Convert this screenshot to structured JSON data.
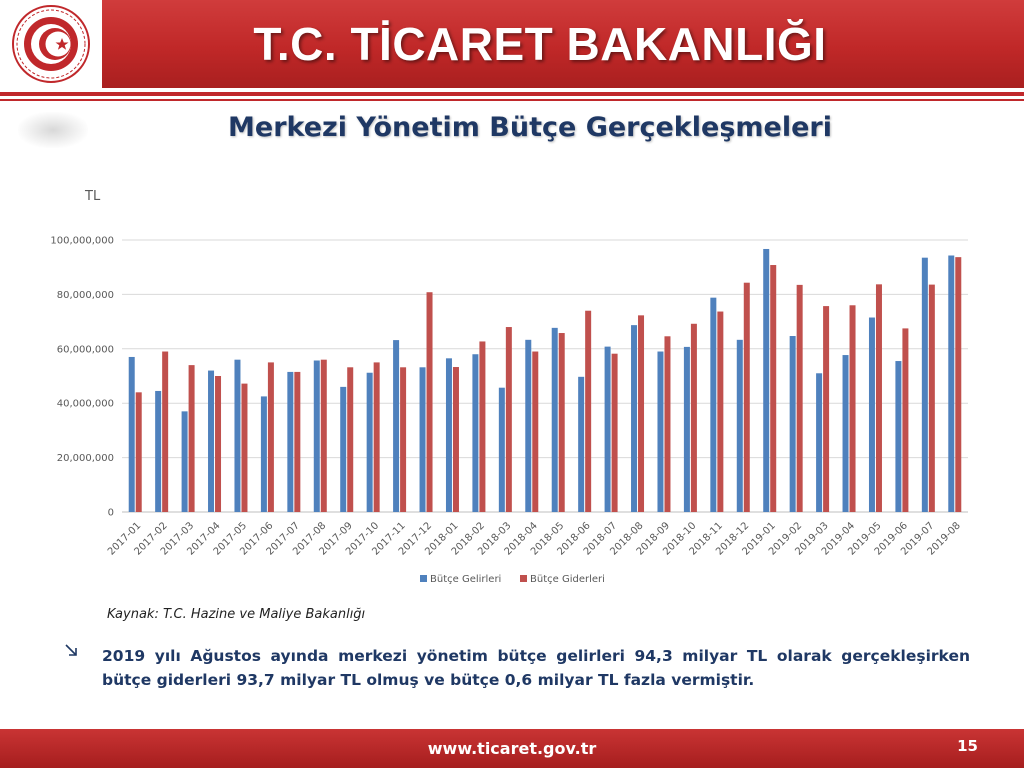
{
  "header": {
    "title": "T.C. TİCARET BAKANLIĞI",
    "logo_icon": "ministry-seal-icon"
  },
  "slide": {
    "subtitle": "Merkezi Yönetim Bütçe Gerçekleşmeleri"
  },
  "chart_data": {
    "type": "bar",
    "ylabel": "TL",
    "ylim": [
      0,
      100000000
    ],
    "yticks": [
      "0",
      "20,000,000",
      "40,000,000",
      "60,000,000",
      "80,000,000",
      "100,000,000"
    ],
    "ytick_values": [
      0,
      20000000,
      40000000,
      60000000,
      80000000,
      100000000
    ],
    "grid": true,
    "legend_position": "bottom",
    "categories": [
      "2017-01",
      "2017-02",
      "2017-03",
      "2017-04",
      "2017-05",
      "2017-06",
      "2017-07",
      "2017-08",
      "2017-09",
      "2017-10",
      "2017-11",
      "2017-12",
      "2018-01",
      "2018-02",
      "2018-03",
      "2018-04",
      "2018-05",
      "2018-06",
      "2018-07",
      "2018-08",
      "2018-09",
      "2018-10",
      "2018-11",
      "2018-12",
      "2019-01",
      "2019-02",
      "2019-03",
      "2019-04",
      "2019-05",
      "2019-06",
      "2019-07",
      "2019-08"
    ],
    "series": [
      {
        "name": "Bütçe Gelirleri",
        "color": "#4f81bd",
        "values": [
          57000000,
          44500000,
          37000000,
          52000000,
          56000000,
          42500000,
          51500000,
          55700000,
          46000000,
          51200000,
          63200000,
          53200000,
          56500000,
          58000000,
          45700000,
          63300000,
          67700000,
          49700000,
          60800000,
          68700000,
          59000000,
          60700000,
          78800000,
          63300000,
          96700000,
          64700000,
          51000000,
          57700000,
          71500000,
          55500000,
          93500000,
          94300000
        ]
      },
      {
        "name": "Bütçe Giderleri",
        "color": "#c0504d",
        "values": [
          44000000,
          59000000,
          54000000,
          50000000,
          47200000,
          55000000,
          51500000,
          56000000,
          53200000,
          55000000,
          53200000,
          80800000,
          53300000,
          62700000,
          68000000,
          59000000,
          65800000,
          74000000,
          58200000,
          72300000,
          64600000,
          69200000,
          73700000,
          84300000,
          90800000,
          83500000,
          75700000,
          76000000,
          83700000,
          67500000,
          83600000,
          93700000
        ]
      }
    ]
  },
  "source": {
    "label": "Kaynak:",
    "text": "T.C. Hazine ve Maliye Bakanlığı"
  },
  "bullet": {
    "icon": "arrow-down-right-icon",
    "text": "2019 yılı Ağustos ayında merkezi yönetim bütçe gelirleri 94,3 milyar TL olarak gerçekleşirken bütçe giderleri 93,7 milyar TL olmuş ve bütçe 0,6 milyar TL fazla vermiştir."
  },
  "footer": {
    "url": "www.ticaret.gov.tr",
    "page": "15"
  }
}
